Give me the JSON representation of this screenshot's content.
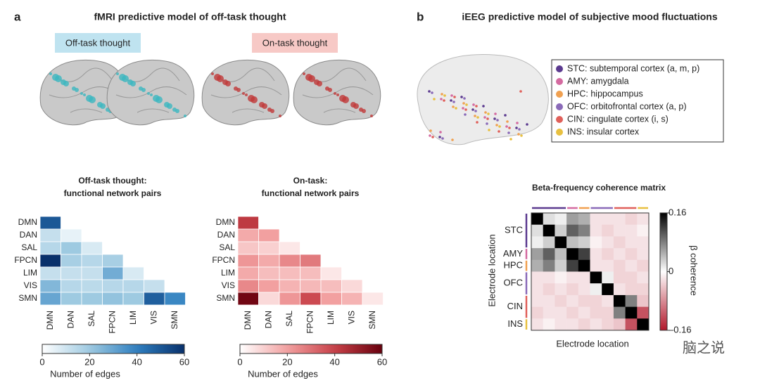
{
  "panel_a": {
    "letter": "a",
    "title": "fMRI predictive model of off-task thought",
    "off_label": "Off-task thought",
    "on_label": "On-task thought",
    "off_task": {
      "title_lines": [
        "Off-task thought:",
        "functional network pairs"
      ],
      "networks": [
        "DMN",
        "DAN",
        "SAL",
        "FPCN",
        "LIM",
        "VIS",
        "SMN"
      ],
      "matrix": [
        [
          50
        ],
        [
          12,
          5
        ],
        [
          15,
          20,
          8
        ],
        [
          60,
          18,
          15,
          18
        ],
        [
          12,
          12,
          12,
          28,
          8
        ],
        [
          25,
          15,
          14,
          15,
          15,
          12
        ],
        [
          30,
          20,
          20,
          22,
          20,
          48,
          38
        ]
      ],
      "colorbar": {
        "lim": [
          0,
          60
        ],
        "ticks": [
          0,
          20,
          40,
          60
        ],
        "label": "Number of edges"
      }
    },
    "on_task": {
      "title_lines": [
        "On-task:",
        "functional network pairs"
      ],
      "networks": [
        "DMN",
        "DAN",
        "SAL",
        "FPCN",
        "LIM",
        "VIS",
        "SMN"
      ],
      "matrix": [
        [
          42
        ],
        [
          18,
          20
        ],
        [
          12,
          10,
          5
        ],
        [
          22,
          18,
          25,
          28
        ],
        [
          18,
          14,
          14,
          14,
          5
        ],
        [
          25,
          20,
          16,
          15,
          14,
          8
        ],
        [
          58,
          8,
          22,
          38,
          20,
          16,
          5
        ]
      ],
      "colorbar": {
        "lim": [
          0,
          60
        ],
        "ticks": [
          0,
          20,
          40,
          60
        ],
        "label": "Number of edges"
      }
    }
  },
  "panel_b": {
    "letter": "b",
    "title": "iEEG predictive model of subjective mood fluctuations",
    "legend": [
      {
        "label": "STC: subtemporal cortex (a, m, p)",
        "color": "#5b3a8f"
      },
      {
        "label": "AMY: amygdala",
        "color": "#d46aa0"
      },
      {
        "label": "HPC: hippocampus",
        "color": "#f0a050"
      },
      {
        "label": "OFC: orbitofrontal cortex (a, p)",
        "color": "#8a6ab8"
      },
      {
        "label": "CIN: cingulate cortex (i, s)",
        "color": "#e0605a"
      },
      {
        "label": "INS: insular cortex",
        "color": "#e8c040"
      }
    ],
    "matrix_title": "Beta-frequency coherence matrix",
    "row_labels": [
      "STC",
      "AMY",
      "HPC",
      "OFC",
      "CIN",
      "INS"
    ],
    "y_label": "Electrode location",
    "x_label": "Electrode location",
    "matrix": [
      [
        0.16,
        0.02,
        0.01,
        0.06,
        0.05,
        -0.02,
        -0.02,
        -0.02,
        -0.03,
        -0.02
      ],
      [
        0.02,
        0.16,
        0.03,
        0.1,
        0.08,
        -0.02,
        -0.03,
        -0.02,
        -0.02,
        -0.01
      ],
      [
        0.01,
        0.03,
        0.16,
        0.04,
        0.03,
        -0.01,
        -0.02,
        -0.03,
        -0.02,
        -0.02
      ],
      [
        0.06,
        0.1,
        0.04,
        0.16,
        0.12,
        -0.02,
        -0.03,
        -0.02,
        -0.03,
        -0.02
      ],
      [
        0.05,
        0.08,
        0.03,
        0.12,
        0.16,
        -0.02,
        -0.02,
        -0.03,
        -0.02,
        -0.03
      ],
      [
        -0.02,
        -0.02,
        -0.01,
        -0.02,
        -0.02,
        0.16,
        0.01,
        -0.03,
        -0.03,
        -0.02
      ],
      [
        -0.02,
        -0.03,
        -0.02,
        -0.03,
        -0.02,
        0.01,
        0.16,
        -0.02,
        -0.03,
        -0.03
      ],
      [
        -0.02,
        -0.02,
        -0.03,
        -0.02,
        -0.03,
        -0.03,
        -0.02,
        0.16,
        0.08,
        -0.04
      ],
      [
        -0.03,
        -0.02,
        -0.02,
        -0.03,
        -0.02,
        -0.03,
        -0.03,
        0.08,
        0.16,
        -0.12
      ],
      [
        -0.02,
        -0.01,
        -0.02,
        -0.02,
        -0.03,
        -0.02,
        -0.03,
        -0.04,
        -0.12,
        0.16
      ]
    ],
    "colorbar": {
      "lim": [
        -0.16,
        0.16
      ],
      "ticks": [
        {
          "value": -0.16,
          "label": "–0.16"
        },
        0,
        0.16
      ],
      "label": "β coherence"
    }
  },
  "watermark": "脑之说"
}
